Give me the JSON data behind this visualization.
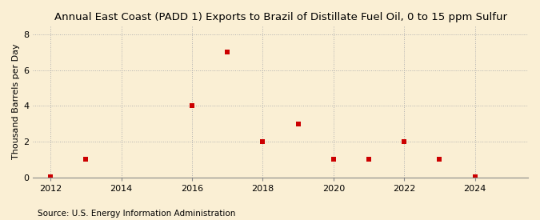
{
  "title": "Annual East Coast (PADD 1) Exports to Brazil of Distillate Fuel Oil, 0 to 15 ppm Sulfur",
  "ylabel": "Thousand Barrels per Day",
  "source": "Source: U.S. Energy Information Administration",
  "background_color": "#faefd4",
  "marker_color": "#cc0000",
  "marker": "s",
  "marker_size": 4,
  "x_data": [
    2012,
    2013,
    2016,
    2017,
    2018,
    2019,
    2020,
    2021,
    2022,
    2023,
    2024
  ],
  "y_data": [
    0.03,
    1.0,
    4.0,
    7.0,
    2.0,
    3.0,
    1.0,
    1.0,
    2.0,
    1.0,
    0.03
  ],
  "xlim": [
    2011.5,
    2025.5
  ],
  "ylim": [
    0,
    8.5
  ],
  "xticks": [
    2012,
    2014,
    2016,
    2018,
    2020,
    2022,
    2024
  ],
  "yticks": [
    0,
    2,
    4,
    6,
    8
  ],
  "grid_color": "#b0b0b0",
  "grid_style": "dotted",
  "title_fontsize": 9.5,
  "label_fontsize": 8,
  "tick_fontsize": 8,
  "source_fontsize": 7.5
}
